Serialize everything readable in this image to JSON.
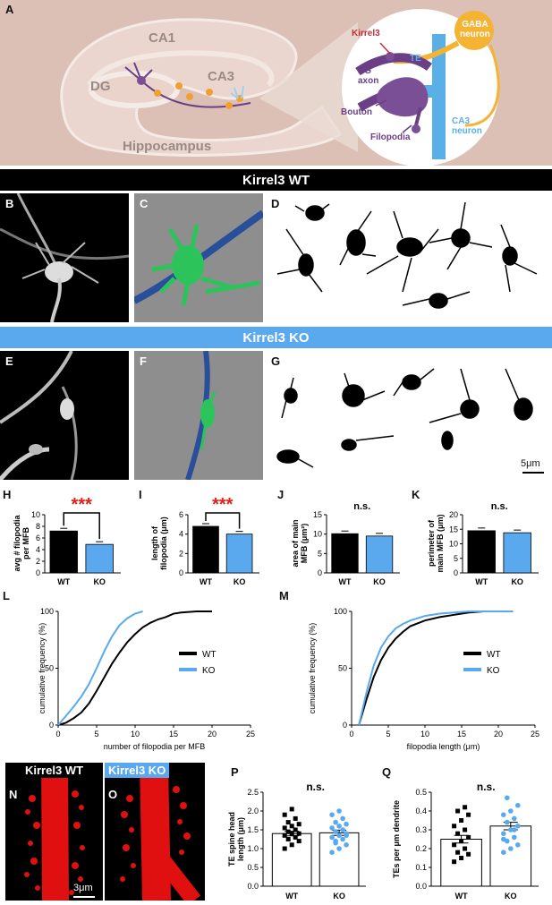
{
  "panels": {
    "A": "A",
    "B": "B",
    "C": "C",
    "D": "D",
    "E": "E",
    "F": "F",
    "G": "G",
    "H": "H",
    "I": "I",
    "J": "J",
    "K": "K",
    "L": "L",
    "M": "M",
    "N": "N",
    "O": "O",
    "P": "P",
    "Q": "Q"
  },
  "schematic": {
    "ca1": "CA1",
    "ca3": "CA3",
    "dg": "DG",
    "hippocampus": "Hippocampus",
    "gaba": "GABA",
    "gaba2": "neuron",
    "kirrel3": "Kirrel3",
    "te": "TE",
    "dg_axon1": "DG",
    "dg_axon2": "axon",
    "bouton": "Bouton",
    "filopodia": "Filopodia",
    "ca3_neuron1": "CA3",
    "ca3_neuron2": "neuron"
  },
  "bands": {
    "wt": "Kirrel3 WT",
    "ko": "Kirrel3 KO"
  },
  "scale_5um": "5μm",
  "scale_3um": "3μm",
  "tags": {
    "wt": "Kirrel3 WT",
    "ko": "Kirrel3 KO"
  },
  "colors": {
    "wt": "#000000",
    "ko": "#5aa9ef",
    "sig": "#e0201b",
    "bg": "#dcc0b6"
  },
  "chart_data": [
    {
      "panel": "H",
      "type": "bar",
      "categories": [
        "WT",
        "KO"
      ],
      "values": [
        7.2,
        4.9
      ],
      "ylim": [
        0,
        10
      ],
      "ticks": [
        0,
        2,
        4,
        6,
        8,
        10
      ],
      "ylabel": [
        "avg # filopodia",
        "per MFB"
      ],
      "significance": "***"
    },
    {
      "panel": "I",
      "type": "bar",
      "categories": [
        "WT",
        "KO"
      ],
      "values": [
        4.8,
        4.0
      ],
      "ylim": [
        0,
        6
      ],
      "ticks": [
        0,
        2,
        4,
        6
      ],
      "ylabel": [
        "length of",
        "filopodia (μm)"
      ],
      "significance": "***"
    },
    {
      "panel": "J",
      "type": "bar",
      "categories": [
        "WT",
        "KO"
      ],
      "values": [
        10.1,
        9.5
      ],
      "ylim": [
        0,
        15
      ],
      "ticks": [
        0,
        5,
        10,
        15
      ],
      "ylabel": [
        "area of main",
        "MFB (μm²)"
      ],
      "significance": "n.s."
    },
    {
      "panel": "K",
      "type": "bar",
      "categories": [
        "WT",
        "KO"
      ],
      "values": [
        14.5,
        13.8
      ],
      "ylim": [
        0,
        20
      ],
      "ticks": [
        0,
        5,
        10,
        15,
        20
      ],
      "ylabel": [
        "perimeter of",
        "main MFB (μm)"
      ],
      "significance": "n.s."
    },
    {
      "panel": "L",
      "type": "line",
      "xlabel": "number of filopodia per MFB",
      "ylabel": "cumulative frequency (%)",
      "xlim": [
        0,
        25
      ],
      "ylim": [
        0,
        100
      ],
      "xticks": [
        0,
        5,
        10,
        15,
        20,
        25
      ],
      "yticks": [
        0,
        50,
        100
      ],
      "series": [
        {
          "name": "WT",
          "x": [
            0,
            1,
            2,
            3,
            4,
            5,
            6,
            7,
            8,
            9,
            10,
            11,
            12,
            13,
            14,
            15,
            16,
            18,
            20
          ],
          "y": [
            0,
            2,
            6,
            11,
            19,
            30,
            42,
            54,
            64,
            73,
            80,
            86,
            90,
            93,
            95,
            98,
            99,
            100,
            100
          ]
        },
        {
          "name": "KO",
          "x": [
            0,
            1,
            2,
            3,
            4,
            5,
            6,
            7,
            8,
            9,
            10,
            11
          ],
          "y": [
            0,
            8,
            16,
            25,
            36,
            50,
            65,
            78,
            88,
            94,
            98,
            100
          ]
        }
      ]
    },
    {
      "panel": "M",
      "type": "line",
      "xlabel": "filopodia length (μm)",
      "ylabel": "cumulative frequency (%)",
      "xlim": [
        0,
        25
      ],
      "ylim": [
        0,
        100
      ],
      "xticks": [
        0,
        5,
        10,
        15,
        20,
        25
      ],
      "yticks": [
        0,
        50,
        100
      ],
      "series": [
        {
          "name": "WT",
          "x": [
            1,
            2,
            3,
            4,
            5,
            6,
            7,
            8,
            10,
            12,
            14,
            16,
            18,
            22
          ],
          "y": [
            0,
            22,
            42,
            57,
            68,
            76,
            82,
            87,
            92,
            95,
            97,
            99,
            100,
            100
          ]
        },
        {
          "name": "KO",
          "x": [
            1,
            2,
            3,
            4,
            5,
            6,
            7,
            8,
            10,
            12,
            14,
            16,
            22
          ],
          "y": [
            0,
            28,
            52,
            68,
            78,
            85,
            89,
            92,
            96,
            98,
            99,
            100,
            100
          ]
        }
      ]
    },
    {
      "panel": "P",
      "type": "scatter",
      "categories": [
        "WT",
        "KO"
      ],
      "values": [
        1.4,
        1.42
      ],
      "errors": [
        0.06,
        0.07
      ],
      "ylim": [
        0,
        2.5
      ],
      "ticks": [
        0.0,
        0.5,
        1.0,
        1.5,
        2.0,
        2.5
      ],
      "tick_labels": [
        "0.0",
        "0.5",
        "1.0",
        "1.5",
        "2.0",
        "2.5"
      ],
      "ylabel": [
        "TE spine head",
        "length (μm)"
      ],
      "significance": "n.s.",
      "points": [
        [
          1.0,
          1.1,
          1.2,
          1.25,
          1.3,
          1.35,
          1.4,
          1.4,
          1.45,
          1.5,
          1.55,
          1.6,
          1.65,
          1.7,
          1.8,
          1.9,
          2.05
        ],
        [
          0.9,
          1.0,
          1.1,
          1.2,
          1.25,
          1.3,
          1.35,
          1.4,
          1.45,
          1.5,
          1.55,
          1.6,
          1.65,
          1.7,
          1.8,
          1.9,
          2.0,
          1.35,
          1.15
        ]
      ]
    },
    {
      "panel": "Q",
      "type": "scatter",
      "categories": [
        "WT",
        "KO"
      ],
      "values": [
        0.25,
        0.32
      ],
      "errors": [
        0.02,
        0.02
      ],
      "ylim": [
        0,
        0.5
      ],
      "ticks": [
        0.0,
        0.1,
        0.2,
        0.3,
        0.4,
        0.5
      ],
      "tick_labels": [
        "0.0",
        "0.1",
        "0.2",
        "0.3",
        "0.4",
        "0.5"
      ],
      "ylabel": [
        "TEs per μm dendrite"
      ],
      "significance": "n.s.",
      "points": [
        [
          0.13,
          0.15,
          0.17,
          0.18,
          0.2,
          0.22,
          0.24,
          0.26,
          0.28,
          0.3,
          0.32,
          0.35,
          0.38,
          0.4,
          0.42
        ],
        [
          0.18,
          0.2,
          0.22,
          0.24,
          0.26,
          0.28,
          0.3,
          0.32,
          0.34,
          0.36,
          0.38,
          0.4,
          0.43,
          0.47,
          0.3,
          0.25
        ]
      ]
    }
  ]
}
